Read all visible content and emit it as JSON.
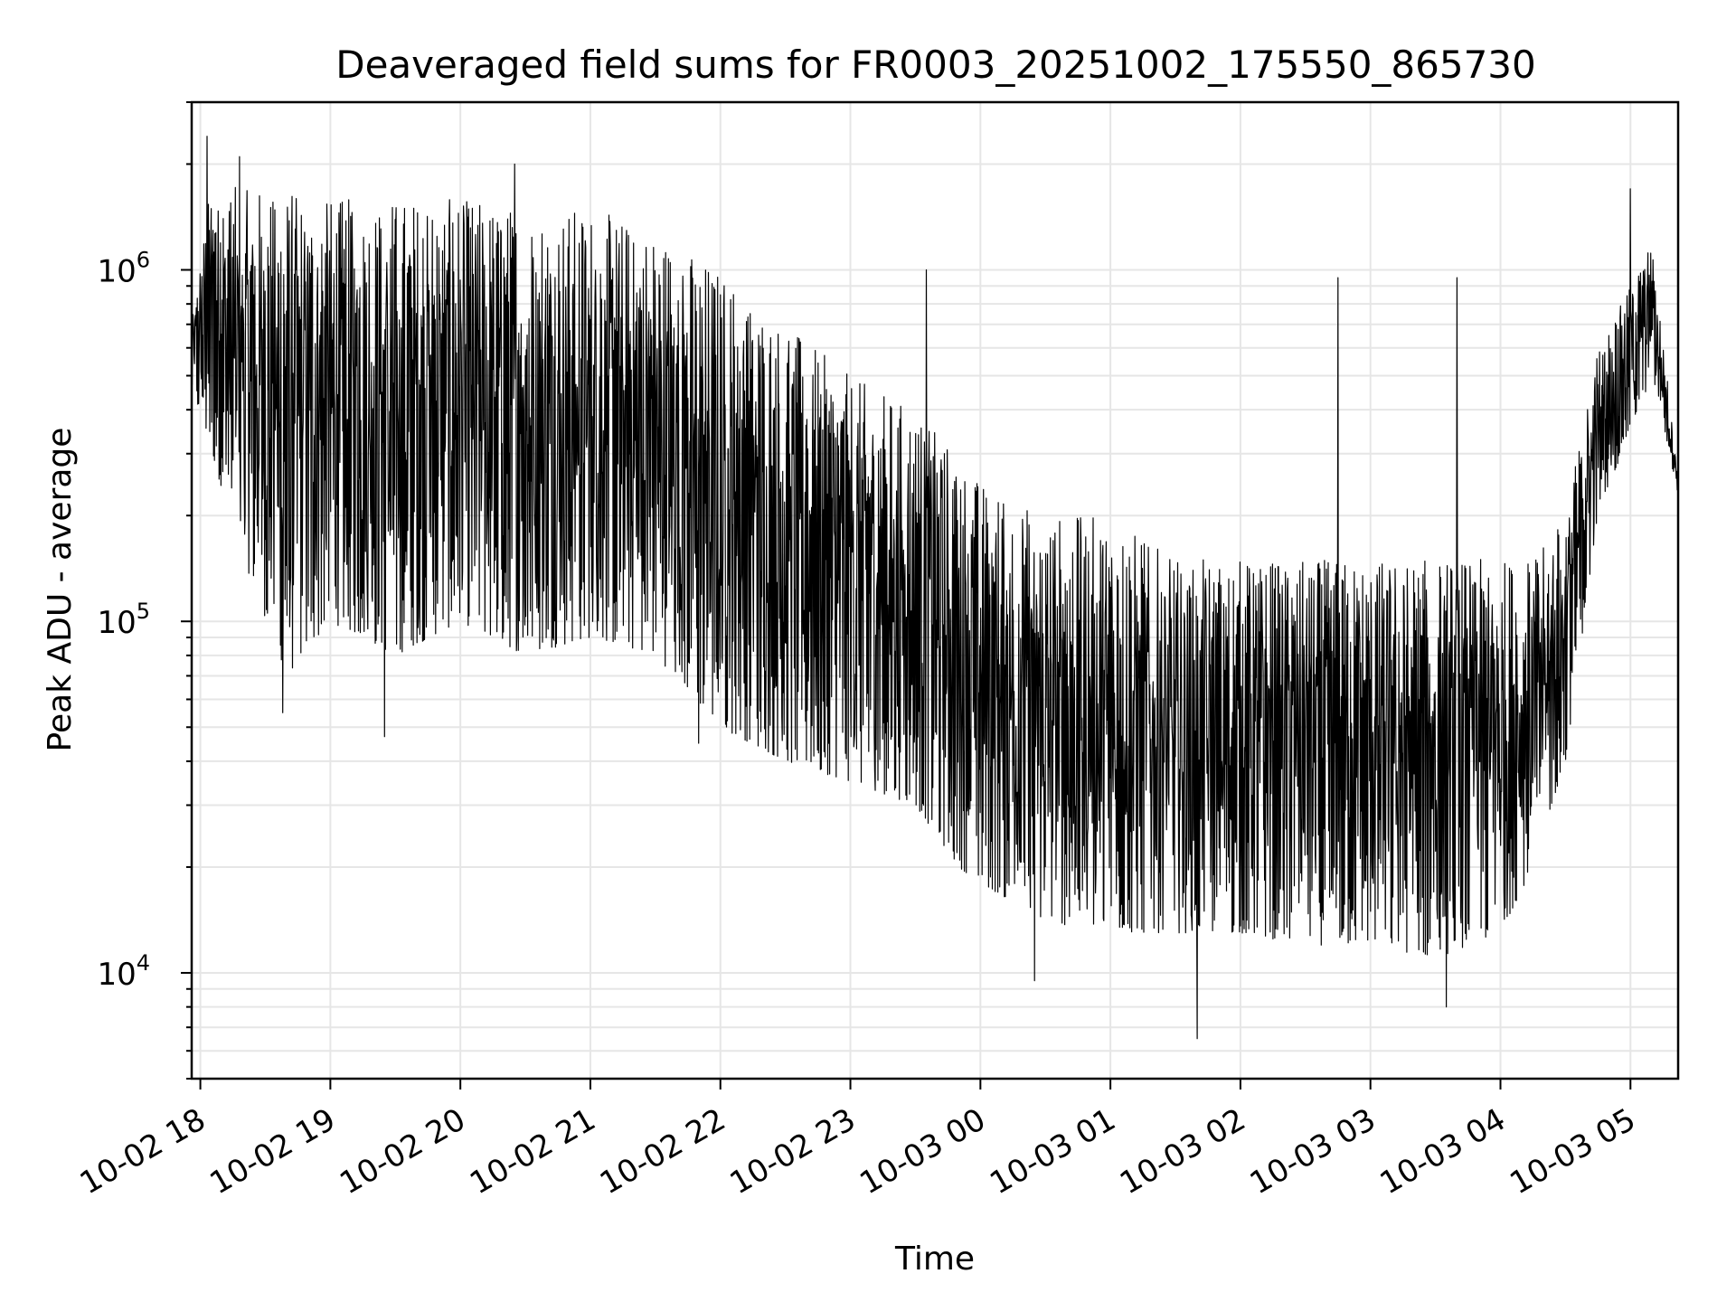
{
  "chart_data": {
    "type": "line",
    "title": "Deaveraged field sums for FR0003_20251002_175550_865730",
    "xlabel": "Time",
    "ylabel": "Peak ADU - average",
    "y_scale": "log",
    "ylim": [
      5000,
      3000000
    ],
    "xlim": [
      "2025-10-02 17:56",
      "2025-10-03 05:22"
    ],
    "grid": true,
    "x_ticks": [
      {
        "value": "2025-10-02 18:00",
        "label": "10-02 18"
      },
      {
        "value": "2025-10-02 19:00",
        "label": "10-02 19"
      },
      {
        "value": "2025-10-02 20:00",
        "label": "10-02 20"
      },
      {
        "value": "2025-10-02 21:00",
        "label": "10-02 21"
      },
      {
        "value": "2025-10-02 22:00",
        "label": "10-02 22"
      },
      {
        "value": "2025-10-02 23:00",
        "label": "10-02 23"
      },
      {
        "value": "2025-10-03 00:00",
        "label": "10-03 00"
      },
      {
        "value": "2025-10-03 01:00",
        "label": "10-03 01"
      },
      {
        "value": "2025-10-03 02:00",
        "label": "10-03 02"
      },
      {
        "value": "2025-10-03 03:00",
        "label": "10-03 03"
      },
      {
        "value": "2025-10-03 04:00",
        "label": "10-03 04"
      },
      {
        "value": "2025-10-03 05:00",
        "label": "10-03 05"
      }
    ],
    "y_ticks": [
      {
        "value": 10000,
        "base": "10",
        "exp": "4"
      },
      {
        "value": 100000,
        "base": "10",
        "exp": "5"
      },
      {
        "value": 1000000,
        "base": "10",
        "exp": "6"
      }
    ],
    "envelope": [
      {
        "x": "2025-10-02 17:56",
        "low": 450000,
        "high": 700000
      },
      {
        "x": "2025-10-02 18:05",
        "low": 300000,
        "high": 1800000
      },
      {
        "x": "2025-10-02 18:20",
        "low": 150000,
        "high": 1700000
      },
      {
        "x": "2025-10-02 18:40",
        "low": 70000,
        "high": 1700000
      },
      {
        "x": "2025-10-02 19:00",
        "low": 100000,
        "high": 1600000
      },
      {
        "x": "2025-10-02 19:30",
        "low": 80000,
        "high": 1600000
      },
      {
        "x": "2025-10-02 20:00",
        "low": 100000,
        "high": 1600000
      },
      {
        "x": "2025-10-02 20:30",
        "low": 80000,
        "high": 1500000
      },
      {
        "x": "2025-10-02 21:00",
        "low": 90000,
        "high": 1500000
      },
      {
        "x": "2025-10-02 21:30",
        "low": 80000,
        "high": 1300000
      },
      {
        "x": "2025-10-02 22:00",
        "low": 50000,
        "high": 1000000
      },
      {
        "x": "2025-10-02 22:30",
        "low": 40000,
        "high": 700000
      },
      {
        "x": "2025-10-02 23:00",
        "low": 35000,
        "high": 500000
      },
      {
        "x": "2025-10-02 23:30",
        "low": 30000,
        "high": 400000
      },
      {
        "x": "2025-10-02 23:50",
        "low": 20000,
        "high": 300000
      },
      {
        "x": "2025-10-03 00:00",
        "low": 18000,
        "high": 250000
      },
      {
        "x": "2025-10-03 00:30",
        "low": 14000,
        "high": 200000
      },
      {
        "x": "2025-10-03 01:00",
        "low": 13000,
        "high": 200000
      },
      {
        "x": "2025-10-03 01:30",
        "low": 13000,
        "high": 150000
      },
      {
        "x": "2025-10-03 02:00",
        "low": 13000,
        "high": 150000
      },
      {
        "x": "2025-10-03 02:30",
        "low": 12000,
        "high": 150000
      },
      {
        "x": "2025-10-03 03:00",
        "low": 12000,
        "high": 150000
      },
      {
        "x": "2025-10-03 03:30",
        "low": 11000,
        "high": 150000
      },
      {
        "x": "2025-10-03 04:00",
        "low": 13000,
        "high": 150000
      },
      {
        "x": "2025-10-03 04:15",
        "low": 20000,
        "high": 150000
      },
      {
        "x": "2025-10-03 04:30",
        "low": 40000,
        "high": 200000
      },
      {
        "x": "2025-10-03 04:45",
        "low": 200000,
        "high": 600000
      },
      {
        "x": "2025-10-03 05:00",
        "low": 350000,
        "high": 900000
      },
      {
        "x": "2025-10-03 05:10",
        "low": 500000,
        "high": 1200000
      },
      {
        "x": "2025-10-03 05:22",
        "low": 230000,
        "high": 260000
      }
    ],
    "spikes": [
      {
        "x": "2025-10-02 18:03",
        "y": 2400000
      },
      {
        "x": "2025-10-02 18:18",
        "y": 2100000
      },
      {
        "x": "2025-10-02 20:25",
        "y": 2000000
      },
      {
        "x": "2025-10-02 23:35",
        "y": 1000000
      },
      {
        "x": "2025-10-03 02:45",
        "y": 950000
      },
      {
        "x": "2025-10-03 03:40",
        "y": 950000
      },
      {
        "x": "2025-10-03 05:00",
        "y": 1700000
      },
      {
        "x": "2025-10-02 18:38",
        "y": 55000
      },
      {
        "x": "2025-10-02 19:25",
        "y": 47000
      },
      {
        "x": "2025-10-02 21:50",
        "y": 45000
      },
      {
        "x": "2025-10-03 00:25",
        "y": 9500
      },
      {
        "x": "2025-10-03 01:40",
        "y": 6500
      },
      {
        "x": "2025-10-03 03:35",
        "y": 8000
      }
    ]
  }
}
